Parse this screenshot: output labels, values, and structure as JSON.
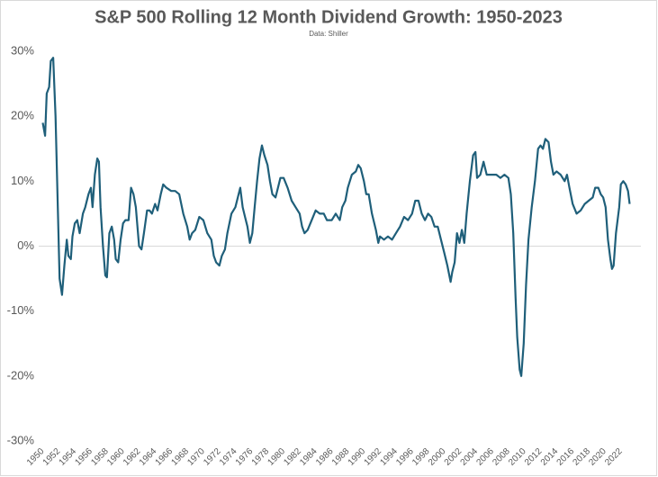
{
  "chart_data": {
    "type": "line",
    "title": "S&P 500 Rolling 12 Month Dividend Growth: 1950-2023",
    "subtitle": "Data: Shiller",
    "x": [
      1950.0,
      1950.3,
      1950.5,
      1950.8,
      1951.0,
      1951.3,
      1951.6,
      1951.9,
      1952.1,
      1952.4,
      1952.7,
      1953.0,
      1953.2,
      1953.5,
      1953.7,
      1954.0,
      1954.3,
      1954.6,
      1955.0,
      1955.3,
      1955.7,
      1956.0,
      1956.2,
      1956.5,
      1956.8,
      1957.0,
      1957.2,
      1957.5,
      1957.8,
      1958.0,
      1958.3,
      1958.6,
      1958.9,
      1959.1,
      1959.4,
      1959.7,
      1960.0,
      1960.3,
      1960.7,
      1961.0,
      1961.3,
      1961.6,
      1962.0,
      1962.3,
      1962.6,
      1963.0,
      1963.3,
      1963.6,
      1964.0,
      1964.3,
      1964.7,
      1965.0,
      1965.4,
      1966.0,
      1966.5,
      1967.0,
      1967.5,
      1968.0,
      1968.3,
      1968.6,
      1969.0,
      1969.5,
      1970.0,
      1970.5,
      1971.0,
      1971.3,
      1971.6,
      1972.0,
      1972.3,
      1972.7,
      1973.0,
      1973.5,
      1974.0,
      1974.3,
      1974.6,
      1974.9,
      1975.2,
      1975.5,
      1975.8,
      1976.1,
      1976.4,
      1976.7,
      1977.0,
      1977.3,
      1977.6,
      1978.0,
      1978.3,
      1978.6,
      1979.0,
      1979.3,
      1979.6,
      1980.0,
      1980.5,
      1981.0,
      1981.5,
      1982.0,
      1982.3,
      1982.6,
      1983.0,
      1983.5,
      1984.0,
      1984.5,
      1985.0,
      1985.4,
      1986.0,
      1986.5,
      1987.0,
      1987.3,
      1987.7,
      1988.0,
      1988.5,
      1989.0,
      1989.3,
      1989.6,
      1990.0,
      1990.3,
      1990.6,
      1991.0,
      1991.5,
      1991.8,
      1992.0,
      1992.5,
      1993.0,
      1993.5,
      1994.0,
      1994.5,
      1995.0,
      1995.5,
      1996.0,
      1996.4,
      1996.8,
      1997.2,
      1997.6,
      1998.0,
      1998.4,
      1998.8,
      1999.2,
      1999.6,
      2000.0,
      2000.4,
      2000.8,
      2001.0,
      2001.3,
      2001.6,
      2001.9,
      2002.2,
      2002.5,
      2002.8,
      2003.2,
      2003.6,
      2003.9,
      2004.1,
      2004.5,
      2004.9,
      2005.3,
      2006.0,
      2006.5,
      2007.0,
      2007.5,
      2008.0,
      2008.3,
      2008.6,
      2008.9,
      2009.1,
      2009.4,
      2009.6,
      2009.9,
      2010.2,
      2010.5,
      2010.9,
      2011.3,
      2011.7,
      2012.0,
      2012.3,
      2012.6,
      2013.0,
      2013.3,
      2013.6,
      2014.0,
      2014.5,
      2015.0,
      2015.3,
      2015.6,
      2016.0,
      2016.5,
      2017.0,
      2017.5,
      2018.0,
      2018.5,
      2018.8,
      2019.2,
      2019.5,
      2019.8,
      2020.1,
      2020.4,
      2020.7,
      2020.9,
      2021.1,
      2021.4,
      2021.8,
      2022.0,
      2022.3,
      2022.6,
      2022.9,
      2023.1
    ],
    "values": [
      19,
      17,
      23.5,
      24.5,
      28.5,
      29,
      20,
      5,
      -5,
      -7.5,
      -3,
      1,
      -1.5,
      -2,
      1.5,
      3.5,
      4,
      2,
      5,
      6,
      8,
      9,
      6,
      11,
      13.5,
      13,
      6,
      0,
      -4.5,
      -4.8,
      2,
      3,
      1,
      -2,
      -2.5,
      1,
      3.5,
      4,
      4,
      9,
      8,
      6,
      0,
      -0.5,
      2,
      5.5,
      5.5,
      5,
      6.5,
      5.5,
      8,
      9.5,
      9,
      8.5,
      8.5,
      8,
      5,
      3,
      1,
      2,
      2.5,
      4.5,
      4,
      2,
      1,
      -1.5,
      -2.5,
      -3,
      -1.5,
      -0.5,
      2,
      5,
      6,
      7.5,
      9,
      6,
      4.5,
      3,
      0.5,
      2,
      6,
      10,
      13.5,
      15.5,
      14,
      12.5,
      10,
      8,
      7.5,
      9,
      10.5,
      10.5,
      9,
      7,
      6,
      5,
      3,
      2,
      2.5,
      4,
      5.5,
      5,
      5,
      4,
      4,
      5,
      4,
      6,
      7,
      9,
      11,
      11.5,
      12.5,
      12,
      10,
      8,
      8,
      5,
      2.5,
      0.5,
      1.5,
      1,
      1.5,
      1,
      2,
      3,
      4.5,
      4,
      5,
      7,
      7,
      5,
      4,
      5,
      4.5,
      3,
      3,
      1,
      -1,
      -3,
      -5.5,
      -4,
      -2.5,
      2,
      0.5,
      2.5,
      0.5,
      5,
      10,
      14,
      14.5,
      10.5,
      11,
      13,
      11,
      11,
      11,
      10.5,
      11,
      10.5,
      8,
      2,
      -8,
      -14,
      -19,
      -20,
      -15,
      -6,
      1,
      6,
      10,
      15,
      15.5,
      15,
      16.5,
      16,
      13,
      11,
      11.5,
      11,
      10,
      11,
      9,
      6.5,
      5,
      5.5,
      6.5,
      7,
      7.5,
      9,
      9,
      8,
      7.5,
      6,
      1,
      -2,
      -3.5,
      -3,
      2,
      6,
      9.5,
      10,
      9.5,
      8.5,
      6.5
    ],
    "color": "#1f5f7a",
    "xlim": [
      1949.5,
      2024.5
    ],
    "xticks": [
      1950,
      1952,
      1954,
      1956,
      1958,
      1960,
      1962,
      1964,
      1966,
      1968,
      1970,
      1972,
      1974,
      1976,
      1978,
      1980,
      1982,
      1984,
      1986,
      1988,
      1990,
      1992,
      1994,
      1996,
      1998,
      2000,
      2002,
      2004,
      2006,
      2008,
      2010,
      2012,
      2014,
      2016,
      2018,
      2020,
      2022
    ],
    "ylim": [
      -30,
      30
    ],
    "yticks": [
      {
        "value": -30,
        "label": "-30%"
      },
      {
        "value": -20,
        "label": "-20%"
      },
      {
        "value": -10,
        "label": "-10%"
      },
      {
        "value": 0,
        "label": "0%"
      },
      {
        "value": 10,
        "label": "10%"
      },
      {
        "value": 20,
        "label": "20%"
      },
      {
        "value": 30,
        "label": "30%"
      }
    ]
  }
}
